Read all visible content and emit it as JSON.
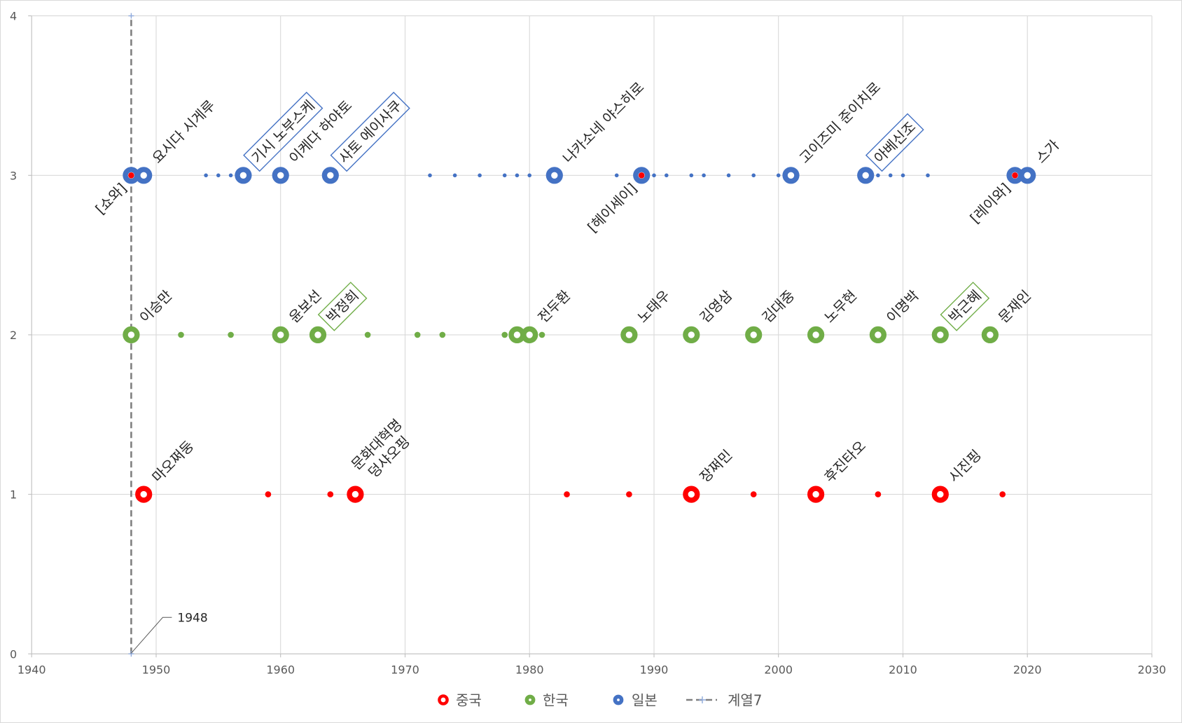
{
  "chart_data": {
    "type": "scatter",
    "title": "",
    "xlabel": "",
    "ylabel": "",
    "xlim": [
      1940,
      2030
    ],
    "ylim": [
      0,
      4
    ],
    "x_tick_labels": [
      "1940",
      "1950",
      "1960",
      "1970",
      "1980",
      "1990",
      "2000",
      "2010",
      "2020",
      "2030"
    ],
    "y_tick_labels": [
      "0",
      "1",
      "2",
      "3",
      "4"
    ],
    "grid": true,
    "legend_position": "bottom",
    "series": [
      {
        "name": "중국",
        "color": "#ff0000",
        "y": 1,
        "major": [
          {
            "x": 1949,
            "label": [
              "마오쩌둥"
            ]
          },
          {
            "x": 1966,
            "label": [
              "문화대혁명",
              "덩샤오핑"
            ]
          },
          {
            "x": 1993,
            "label": [
              "장쩌민"
            ]
          },
          {
            "x": 2003,
            "label": [
              "후진타오"
            ]
          },
          {
            "x": 2013,
            "label": [
              "시진핑"
            ]
          }
        ],
        "minor": [
          1959,
          1964,
          1983,
          1988,
          1998,
          2008,
          2018
        ]
      },
      {
        "name": "한국",
        "color": "#70ad47",
        "y": 2,
        "major": [
          {
            "x": 1948,
            "label": [
              "이승만"
            ]
          },
          {
            "x": 1960,
            "label": [
              "윤보선"
            ]
          },
          {
            "x": 1963,
            "label": [
              "박정희"
            ],
            "boxed": true
          },
          {
            "x": 1979,
            "label": []
          },
          {
            "x": 1980,
            "label": [
              "전두환"
            ]
          },
          {
            "x": 1988,
            "label": [
              "노태우"
            ]
          },
          {
            "x": 1993,
            "label": [
              "김영삼"
            ]
          },
          {
            "x": 1998,
            "label": [
              "김대중"
            ]
          },
          {
            "x": 2003,
            "label": [
              "노무현"
            ]
          },
          {
            "x": 2008,
            "label": [
              "이명박"
            ]
          },
          {
            "x": 2013,
            "label": [
              "박근혜"
            ],
            "boxed": true
          },
          {
            "x": 2017,
            "label": [
              "문재인"
            ]
          }
        ],
        "minor": [
          1952,
          1956,
          1967,
          1971,
          1973,
          1978,
          1981
        ]
      },
      {
        "name": "일본",
        "color": "#4472c4",
        "y": 3,
        "major": [
          {
            "x": 1948,
            "label": []
          },
          {
            "x": 1949,
            "label": [
              "요시다 시게루"
            ]
          },
          {
            "x": 1957,
            "label": [
              "기시 노부스케"
            ],
            "boxed": true
          },
          {
            "x": 1960,
            "label": [
              "이케다 하야토"
            ]
          },
          {
            "x": 1964,
            "label": [
              "사토 에이사쿠"
            ],
            "boxed": true
          },
          {
            "x": 1982,
            "label": [
              "나카소네 야스히로"
            ]
          },
          {
            "x": 1989,
            "label": []
          },
          {
            "x": 2001,
            "label": [
              "고이즈미 준이치로"
            ]
          },
          {
            "x": 2007,
            "label": [
              "아베신조"
            ],
            "boxed": true
          },
          {
            "x": 2019,
            "label": []
          },
          {
            "x": 2020,
            "label": [
              "스가"
            ]
          }
        ],
        "minor": [
          1954,
          1955,
          1956,
          1972,
          1974,
          1976,
          1978,
          1979,
          1980,
          1987,
          1990,
          1991,
          1993,
          1994,
          1996,
          1998,
          2000,
          2008,
          2009,
          2010,
          2012
        ]
      }
    ],
    "era_markers": {
      "color": "#ff0000",
      "y": 3,
      "points": [
        {
          "x": 1948,
          "label": "[쇼와]"
        },
        {
          "x": 1989,
          "label": "[헤이세이]"
        },
        {
          "x": 2019,
          "label": "[레이와]"
        }
      ]
    },
    "reference_line": {
      "name": "계열7",
      "x": 1948,
      "y_range": [
        0,
        4
      ],
      "color": "#7f7f7f",
      "marker_color": "#8faadc",
      "label": "1948"
    }
  }
}
